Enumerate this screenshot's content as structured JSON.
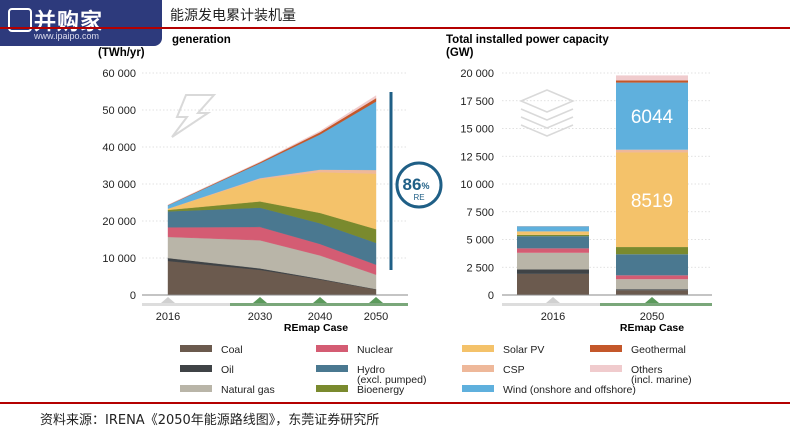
{
  "header": {
    "logo_text": "并购家",
    "logo_url": "www.ipaipo.com",
    "title": "能源发电累计装机量"
  },
  "source": "资料来源：IRENA《2050年能源路线图》，东莞证券研究所",
  "colors": {
    "Coal": "#6b5a4e",
    "Oil": "#3f4346",
    "Natural gas": "#b9b5a8",
    "Nuclear": "#d45c73",
    "Hydro": "#4a7890",
    "Bioenergy": "#7a8a2e",
    "Solar PV": "#f4c26a",
    "CSP": "#eeb89a",
    "Wind": "#5fb0dd",
    "Geothermal": "#c4572a",
    "Others": "#f0cbcd"
  },
  "legend": [
    {
      "key": "Coal",
      "label": "Coal",
      "sub": ""
    },
    {
      "key": "Nuclear",
      "label": "Nuclear",
      "sub": ""
    },
    {
      "key": "Solar PV",
      "label": "Solar PV",
      "sub": ""
    },
    {
      "key": "Geothermal",
      "label": "Geothermal",
      "sub": ""
    },
    {
      "key": "Oil",
      "label": "Oil",
      "sub": ""
    },
    {
      "key": "Hydro",
      "label": "Hydro",
      "sub": "(excl. pumped)"
    },
    {
      "key": "CSP",
      "label": "CSP",
      "sub": ""
    },
    {
      "key": "Others",
      "label": "Others",
      "sub": "(incl. marine)"
    },
    {
      "key": "Natural gas",
      "label": "Natural gas",
      "sub": ""
    },
    {
      "key": "Bioenergy",
      "label": "Bioenergy",
      "sub": ""
    },
    {
      "key": "Wind",
      "label": "Wind (onshore and offshore)",
      "sub": ""
    }
  ],
  "chart_data": [
    {
      "type": "area",
      "title_line1": "generation",
      "title_line2": "(TWh/yr)",
      "x": [
        "2016",
        "2030",
        "2040",
        "2050"
      ],
      "xlabel": "REmap Case",
      "ylim": [
        0,
        60000
      ],
      "yticks": [
        "0",
        "10 000",
        "20 000",
        "30 000",
        "40 000",
        "50 000",
        "60 000"
      ],
      "annotation": {
        "value": "86",
        "unit": "%",
        "label": "RE"
      },
      "series": [
        {
          "name": "Coal",
          "values": [
            9200,
            6800,
            4200,
            1500
          ]
        },
        {
          "name": "Oil",
          "values": [
            800,
            400,
            200,
            100
          ]
        },
        {
          "name": "Natural gas",
          "values": [
            5700,
            7600,
            6300,
            3900
          ]
        },
        {
          "name": "Nuclear",
          "values": [
            2600,
            3600,
            3100,
            2700
          ]
        },
        {
          "name": "Hydro",
          "values": [
            4300,
            5200,
            5600,
            5900
          ]
        },
        {
          "name": "Bioenergy",
          "values": [
            400,
            1700,
            2800,
            3700
          ]
        },
        {
          "name": "Solar PV",
          "values": [
            300,
            6000,
            11000,
            15000
          ]
        },
        {
          "name": "CSP",
          "values": [
            50,
            300,
            700,
            1000
          ]
        },
        {
          "name": "Wind",
          "values": [
            900,
            4000,
            9500,
            18500
          ]
        },
        {
          "name": "Geothermal",
          "values": [
            80,
            300,
            600,
            900
          ]
        },
        {
          "name": "Others",
          "values": [
            20,
            100,
            300,
            700
          ]
        }
      ]
    },
    {
      "type": "bar",
      "title_line1": "Total installed power capacity",
      "title_line2": "(GW)",
      "categories": [
        "2016",
        "2050"
      ],
      "xlabel": "REmap Case",
      "ylim": [
        0,
        20000
      ],
      "yticks": [
        "0",
        "2 500",
        "5 000",
        "7 500",
        "10 000",
        "12 500",
        "15 000",
        "17 500",
        "20 000"
      ],
      "series": [
        {
          "name": "Coal",
          "values": [
            1900,
            420
          ]
        },
        {
          "name": "Oil",
          "values": [
            400,
            100
          ]
        },
        {
          "name": "Natural gas",
          "values": [
            1500,
            900
          ]
        },
        {
          "name": "Nuclear",
          "values": [
            400,
            350
          ]
        },
        {
          "name": "Hydro",
          "values": [
            1100,
            1900
          ]
        },
        {
          "name": "Bioenergy",
          "values": [
            120,
            650
          ]
        },
        {
          "name": "Solar PV",
          "values": [
            300,
            8519
          ]
        },
        {
          "name": "CSP",
          "values": [
            10,
            250
          ]
        },
        {
          "name": "Wind",
          "values": [
            460,
            6044
          ]
        },
        {
          "name": "Geothermal",
          "values": [
            12,
            200
          ]
        },
        {
          "name": "Others",
          "values": [
            10,
            450
          ]
        }
      ],
      "data_labels": [
        {
          "series": "Solar PV",
          "category": "2050",
          "text": "8519"
        },
        {
          "series": "Wind",
          "category": "2050",
          "text": "6044"
        }
      ]
    }
  ]
}
